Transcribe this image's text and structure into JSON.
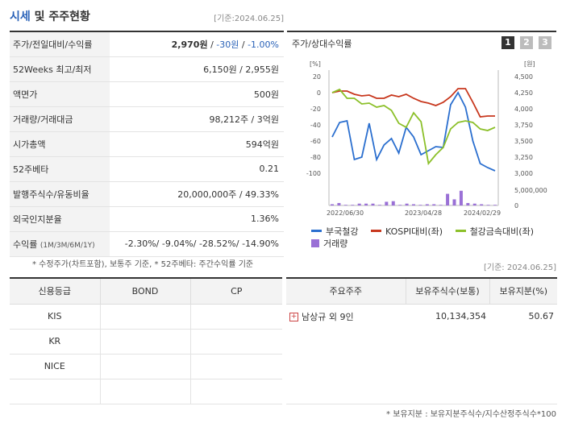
{
  "header": {
    "title_main": "시세",
    "title_rest": " 및 주주현황",
    "date": "[기준:2024.06.25]"
  },
  "summary": {
    "rows": [
      {
        "label": "주가/전일대비/수익률",
        "price": "2,970원",
        "sep1": " / ",
        "change": "-30원",
        "sep2": " / ",
        "rate": "-1.00%"
      },
      {
        "label": "52Weeks 최고/최저",
        "value": "6,150원 / 2,955원"
      },
      {
        "label": "액면가",
        "value": "500원"
      },
      {
        "label": "거래량/거래대금",
        "value": "98,212주 / 3억원"
      },
      {
        "label": "시가총액",
        "value": "594억원"
      },
      {
        "label": "52주베타",
        "value": "0.21"
      },
      {
        "label": "발행주식수/유동비율",
        "value": "20,000,000주 / 49.33%"
      },
      {
        "label": "외국인지분율",
        "value": "1.36%"
      }
    ],
    "returns": {
      "label": "수익률",
      "label_small": "(1M/3M/6M/1Y)",
      "value": "-2.30%/ -9.04%/ -28.52%/ -14.90%"
    },
    "note": "* 수정주가(차트포함), 보통주 기준, * 52주베타: 주간수익률 기준"
  },
  "chart_panel": {
    "title": "주가/상대수익률",
    "tabs": [
      "1",
      "2",
      "3"
    ],
    "active_tab": "1",
    "colors": {
      "stock": "#2b6fcf",
      "kospi": "#c8381e",
      "sector": "#8cc02a",
      "volume": "#9a70d6"
    }
  },
  "chart_data": {
    "type": "line",
    "left_axis_unit": "[%]",
    "right_axis_unit": "[원]",
    "left_ticks": [
      "20",
      "0",
      "-20",
      "-40",
      "-60",
      "-80",
      "-100"
    ],
    "right_ticks": [
      "4,500",
      "4,250",
      "4,000",
      "3,750",
      "3,500",
      "3,250",
      "3,000"
    ],
    "volume_ticks": [
      "5,000,000",
      "0"
    ],
    "x_ticks": [
      "2022/06/30",
      "2023/04/28",
      "2024/02/29"
    ],
    "ylim_left": [
      -100,
      20
    ],
    "series": [
      {
        "name": "부국철강",
        "values": [
          -55,
          -37,
          -35,
          -83,
          -80,
          -38,
          -83,
          -65,
          -57,
          -75,
          -43,
          -55,
          -77,
          -72,
          -67,
          -68,
          -15,
          0,
          -18,
          -60,
          -88,
          -93,
          -97
        ]
      },
      {
        "name": "KOSPI대비(좌)",
        "values": [
          0,
          2,
          2,
          -2,
          -4,
          -3,
          -7,
          -7,
          -3,
          -5,
          -2,
          -7,
          -11,
          -13,
          -16,
          -12,
          -5,
          5,
          5,
          -12,
          -30,
          -29,
          -29
        ]
      },
      {
        "name": "철강금속대비(좌)",
        "values": [
          0,
          4,
          -7,
          -7,
          -14,
          -13,
          -18,
          -16,
          -22,
          -38,
          -43,
          -25,
          -36,
          -88,
          -77,
          -68,
          -45,
          -37,
          -35,
          -37,
          -45,
          -47,
          -43
        ]
      }
    ],
    "volume": {
      "name": "거래량",
      "values": [
        0.2,
        0.4,
        0.1,
        0.1,
        0.3,
        0.3,
        0.3,
        0.1,
        0.6,
        0.7,
        0.1,
        0.3,
        0.2,
        0.1,
        0.2,
        0.2,
        0.1,
        1.9,
        1.0,
        2.4,
        0.4,
        0.3,
        0.2,
        0.1,
        0.1
      ]
    }
  },
  "date2": "[기준: 2024.06.25]",
  "credit": {
    "headers": [
      "신용등급",
      "BOND",
      "CP"
    ],
    "rows": [
      {
        "agency": "KIS",
        "bond": "",
        "cp": ""
      },
      {
        "agency": "KR",
        "bond": "",
        "cp": ""
      },
      {
        "agency": "NICE",
        "bond": "",
        "cp": ""
      },
      {
        "agency": "",
        "bond": "",
        "cp": ""
      }
    ]
  },
  "holders": {
    "headers": [
      "주요주주",
      "보유주식수(보통)",
      "보유지분(%)"
    ],
    "rows": [
      {
        "name": "남상규 외 9인",
        "shares": "10,134,354",
        "pct": "50.67"
      }
    ],
    "note": "* 보유지분 : 보유지분주식수/지수산정주식수*100"
  }
}
